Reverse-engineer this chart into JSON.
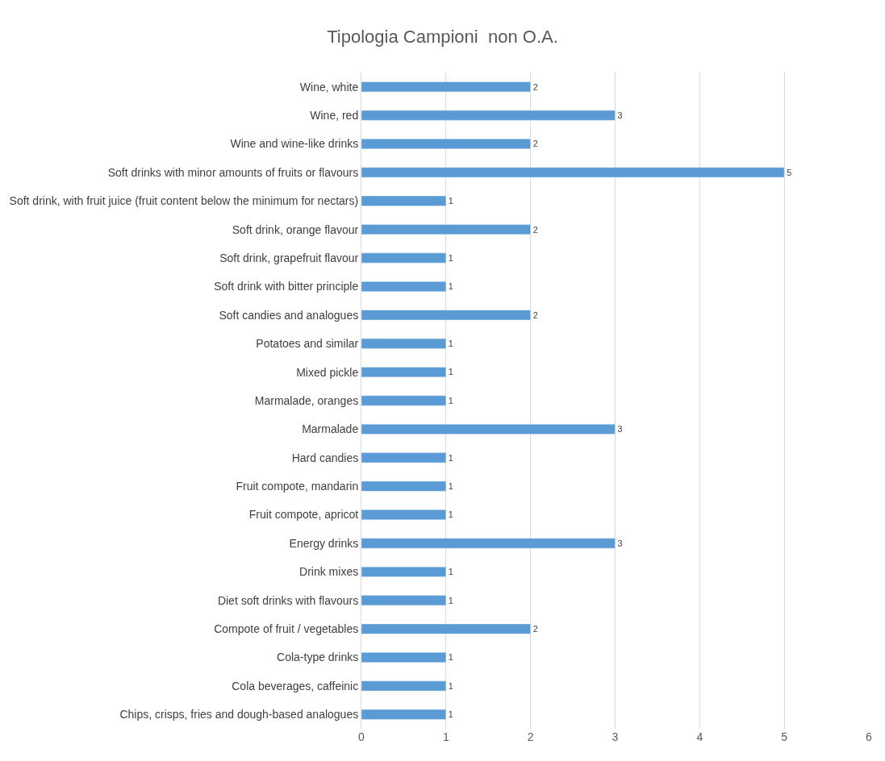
{
  "chart_data": {
    "type": "bar",
    "orientation": "horizontal",
    "title": "Tipologia Campioni  non O.A.",
    "categories": [
      "Wine, white",
      "Wine, red",
      "Wine and wine-like drinks",
      "Soft drinks with minor amounts of fruits or flavours",
      "Soft drink, with fruit juice (fruit content below the minimum for nectars)",
      "Soft drink, orange flavour",
      "Soft drink, grapefruit flavour",
      "Soft drink with bitter principle",
      "Soft candies and analogues",
      "Potatoes and similar",
      "Mixed pickle",
      "Marmalade, oranges",
      "Marmalade",
      "Hard candies",
      "Fruit compote, mandarin",
      "Fruit compote, apricot",
      "Energy drinks",
      "Drink mixes",
      "Diet soft drinks with flavours",
      "Compote of fruit / vegetables",
      "Cola-type drinks",
      "Cola beverages, caffeinic",
      "Chips, crisps, fries and dough-based analogues"
    ],
    "values": [
      2,
      3,
      2,
      5,
      1,
      2,
      1,
      1,
      2,
      1,
      1,
      1,
      3,
      1,
      1,
      1,
      3,
      1,
      1,
      2,
      1,
      1,
      1
    ],
    "color": "#5b9bd5",
    "xlim": [
      0,
      6
    ],
    "xticks": [
      0,
      1,
      2,
      3,
      4,
      5,
      6
    ],
    "grid": "x",
    "data_labels": true,
    "legend": false
  }
}
